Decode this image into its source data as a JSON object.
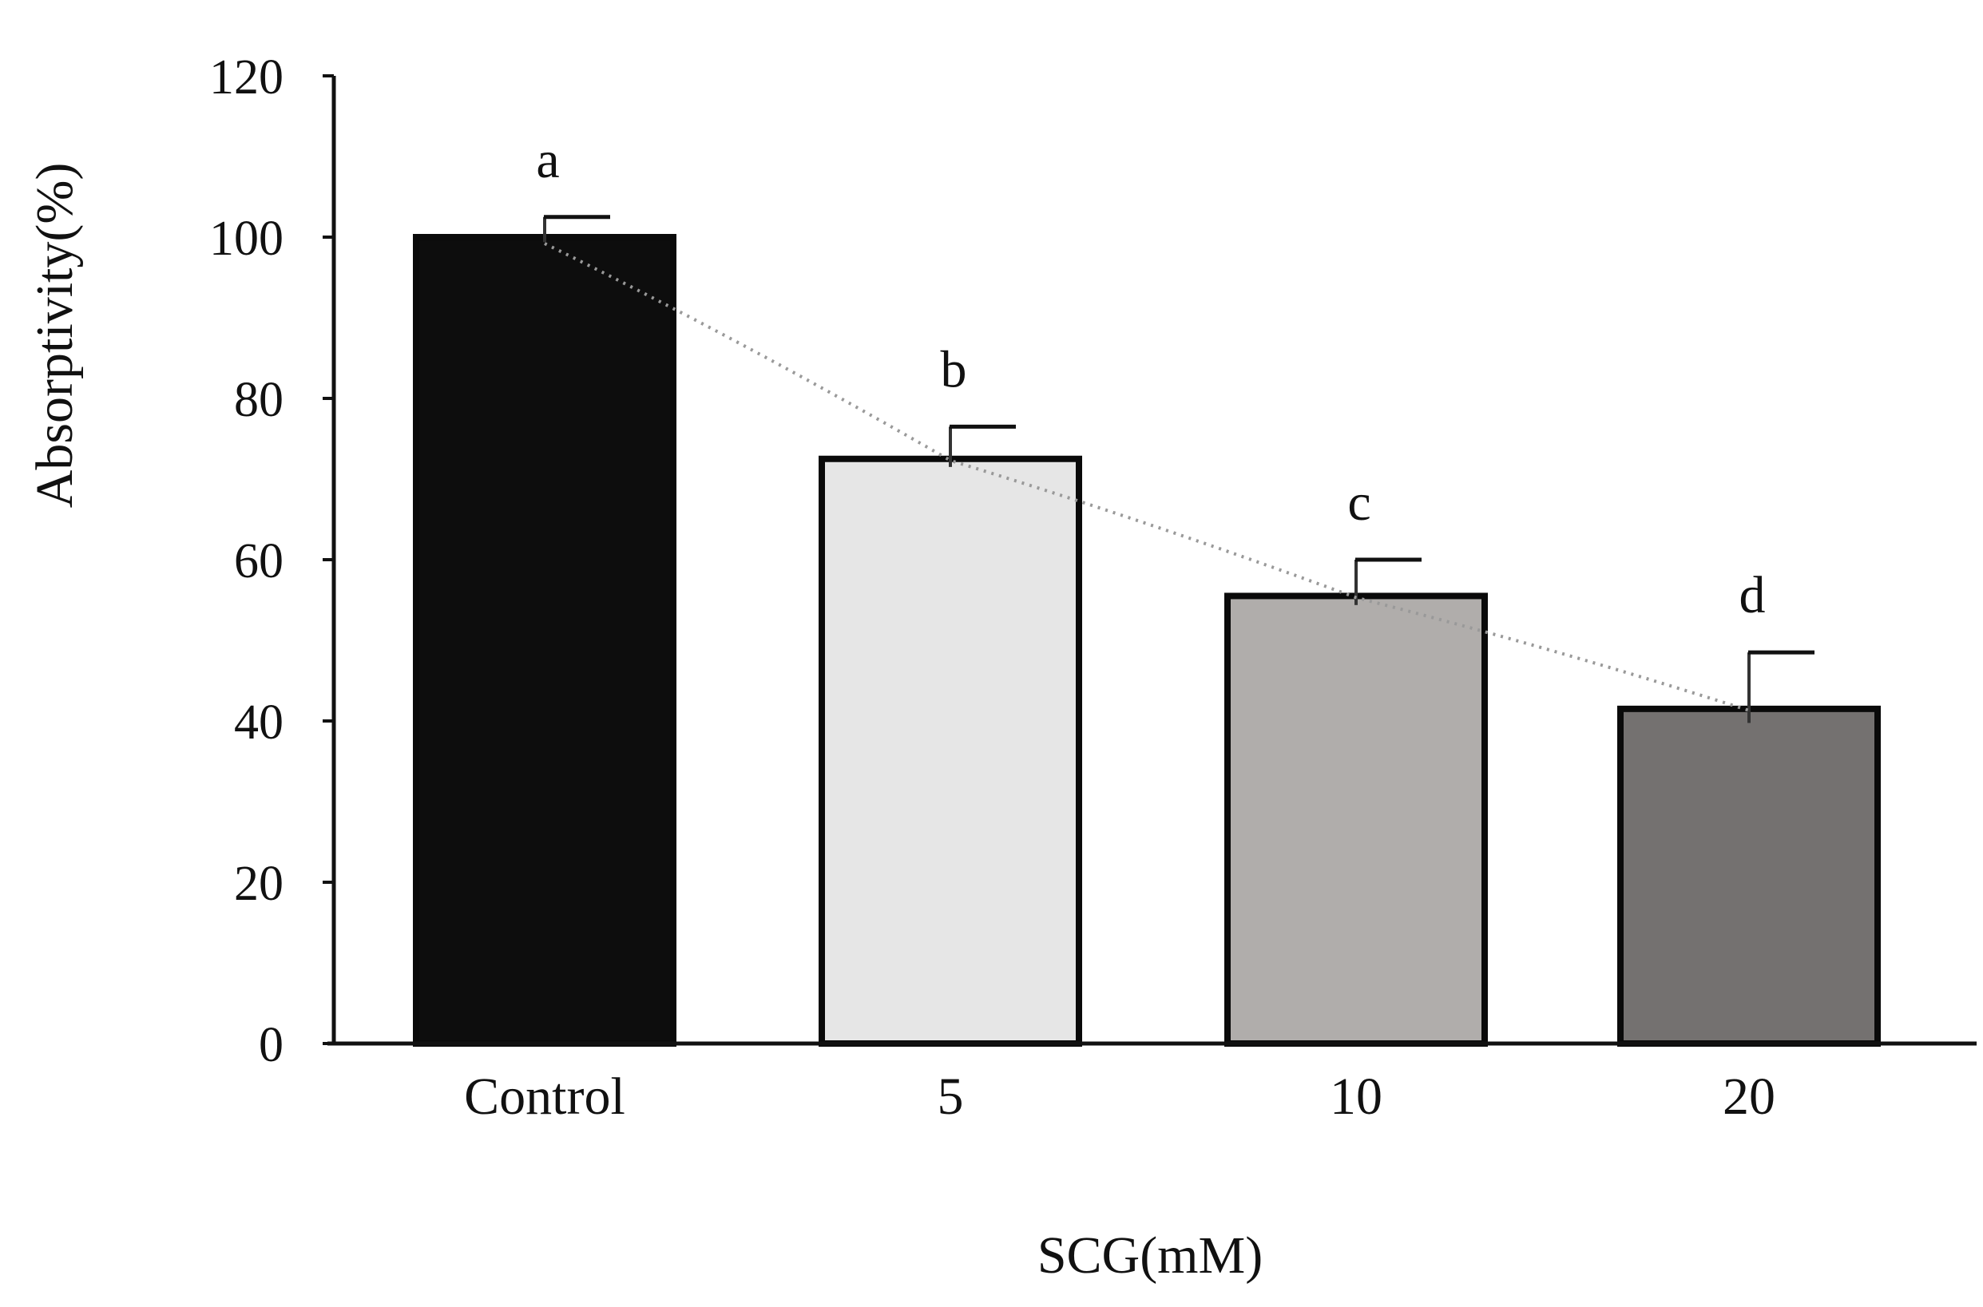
{
  "chart_data": {
    "type": "bar",
    "title": "",
    "xlabel": "SCG(mM)",
    "ylabel": "Absorptivity(%)",
    "ylim": [
      0,
      120
    ],
    "yticks": [
      0,
      20,
      40,
      60,
      80,
      100,
      120
    ],
    "categories": [
      "Control",
      "5",
      "10",
      "20"
    ],
    "values": [
      100,
      72.5,
      55.5,
      41.5
    ],
    "errors": [
      2.5,
      4,
      4.5,
      7
    ],
    "significance_labels": [
      "a",
      "b",
      "c",
      "d"
    ],
    "bar_colors": [
      "#0d0d0d",
      "#e6e6e6",
      "#b0adab",
      "#747170"
    ],
    "trendline": {
      "style": "dotted",
      "color": "#999999"
    },
    "grid": false,
    "legend": "none"
  }
}
